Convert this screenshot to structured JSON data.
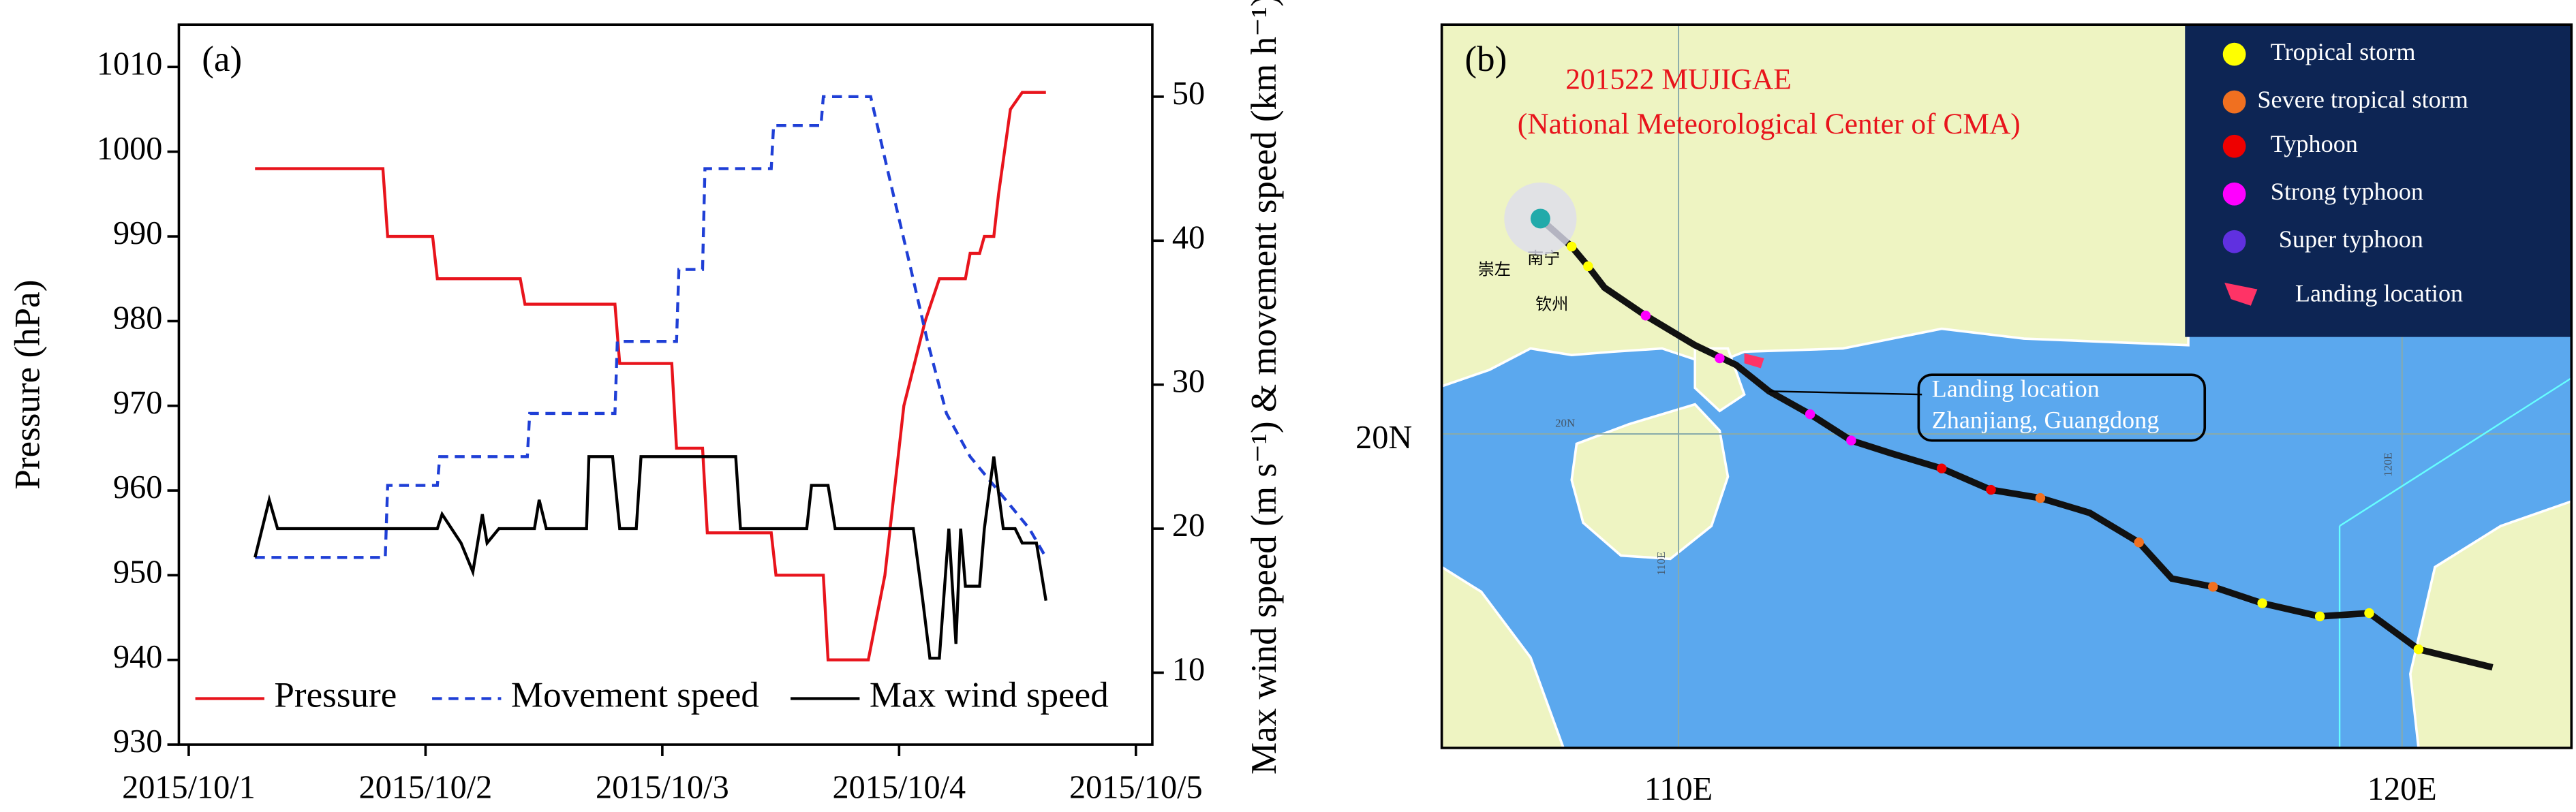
{
  "chart_data": {
    "type": "line",
    "annotation": "(a)",
    "ylabel": "Pressure (hPa)",
    "y2label": "Max wind speed (m s⁻¹) & movement speed (km h⁻¹)",
    "xlim": [
      0,
      4
    ],
    "xticks": [
      {
        "value": 0,
        "label": "2015/10/1"
      },
      {
        "value": 1,
        "label": "2015/10/2"
      },
      {
        "value": 2,
        "label": "2015/10/3"
      },
      {
        "value": 3,
        "label": "2015/10/4"
      },
      {
        "value": 4,
        "label": "2015/10/5"
      }
    ],
    "ylim": [
      930,
      1015
    ],
    "yticks": [
      930,
      940,
      950,
      960,
      970,
      980,
      990,
      1000,
      1010
    ],
    "y2lim": [
      5,
      55
    ],
    "y2ticks": [
      10,
      20,
      30,
      40,
      50
    ],
    "legend": "lower",
    "series": [
      {
        "name": "Pressure",
        "color": "#e8141c",
        "dash": false,
        "x": [
          0.28,
          0.82,
          0.84,
          1.03,
          1.05,
          1.4,
          1.42,
          1.8,
          1.82,
          2.04,
          2.06,
          2.17,
          2.19,
          2.46,
          2.48,
          2.68,
          2.7,
          2.87,
          2.94,
          3.02,
          3.11,
          3.17,
          3.28,
          3.3,
          3.34,
          3.36,
          3.4,
          3.42,
          3.47,
          3.52,
          3.62
        ],
        "values": [
          998,
          998,
          990,
          990,
          985,
          985,
          982,
          982,
          975,
          975,
          965,
          965,
          955,
          955,
          950,
          950,
          940,
          940,
          950,
          970,
          980,
          985,
          985,
          988,
          988,
          990,
          990,
          995,
          1005,
          1007,
          1007
        ]
      },
      {
        "name": "Movement speed",
        "color": "#1f3fd6",
        "dash": true,
        "axis": "y2",
        "x": [
          0.28,
          0.83,
          0.84,
          1.05,
          1.06,
          1.43,
          1.44,
          1.8,
          1.81,
          2.06,
          2.07,
          2.17,
          2.18,
          2.46,
          2.47,
          2.67,
          2.68,
          2.88,
          2.95,
          3.05,
          3.12,
          3.2,
          3.3,
          3.45,
          3.55,
          3.62
        ],
        "values": [
          18,
          18,
          23,
          23,
          25,
          25,
          28,
          28,
          33,
          33,
          38,
          38,
          45,
          45,
          48,
          48,
          50,
          50,
          45,
          38,
          33,
          28,
          25,
          22,
          20,
          18
        ]
      },
      {
        "name": "Max wind speed",
        "color": "#000000",
        "dash": false,
        "axis": "y2",
        "x": [
          0.28,
          0.34,
          0.375,
          1.05,
          1.07,
          1.15,
          1.2,
          1.24,
          1.26,
          1.31,
          1.46,
          1.48,
          1.51,
          1.68,
          1.69,
          1.79,
          1.82,
          1.89,
          1.91,
          2.31,
          2.33,
          2.61,
          2.63,
          2.7,
          2.73,
          3.06,
          3.1,
          3.13,
          3.17,
          3.21,
          3.24,
          3.26,
          3.28,
          3.34,
          3.36,
          3.4,
          3.44,
          3.49,
          3.52,
          3.58,
          3.62
        ],
        "values": [
          18,
          22,
          20,
          20,
          21,
          19,
          17,
          21,
          19,
          20,
          20,
          22,
          20,
          20,
          25,
          25,
          20,
          20,
          25,
          25,
          20,
          20,
          23,
          23,
          20,
          20,
          15,
          11,
          11,
          20,
          12,
          20,
          16,
          16,
          20,
          25,
          20,
          20,
          19,
          19,
          15
        ]
      }
    ]
  },
  "map": {
    "label": "(b)",
    "title": [
      "201522 MUJIGAE",
      "(National Meteorological Center of CMA)"
    ],
    "legend": [
      "Tropical storm",
      "Severe tropical storm",
      "Typhoon",
      "Strong typhoon",
      "Super typhoon",
      "Landing location"
    ],
    "annotation": [
      "Landing location",
      "Zhanjiang, Guangdong"
    ],
    "lat_label": "20N",
    "lon_labels": [
      "110E",
      "120E"
    ],
    "places": [
      "南宁",
      "钦州",
      "崇左"
    ]
  }
}
